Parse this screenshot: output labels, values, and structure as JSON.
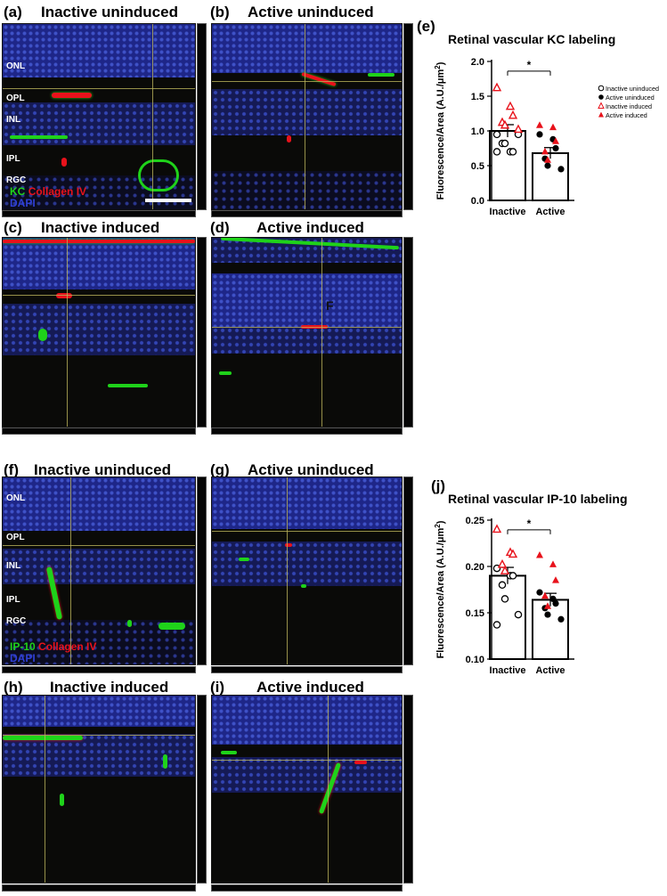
{
  "panels": {
    "a": {
      "label": "(a)",
      "title": "Inactive uninduced"
    },
    "b": {
      "label": "(b)",
      "title": "Active uninduced"
    },
    "c": {
      "label": "(c)",
      "title": "Inactive induced"
    },
    "d": {
      "label": "(d)",
      "title": "Active induced"
    },
    "e": {
      "label": "(e)"
    },
    "f": {
      "label": "(f)",
      "title": "Inactive uninduced"
    },
    "g": {
      "label": "(g)",
      "title": "Active uninduced"
    },
    "h": {
      "label": "(h)",
      "title": "Inactive induced"
    },
    "i": {
      "label": "(i)",
      "title": "Active induced"
    },
    "j": {
      "label": "(j)"
    }
  },
  "layers_top": [
    "ONL",
    "OPL",
    "INL",
    "IPL",
    "RGC"
  ],
  "layers_bottom": [
    "ONL",
    "OPL",
    "INL",
    "IPL",
    "RGC"
  ],
  "stain_top": {
    "kc": "KC",
    "collagen": "Collagen IV",
    "dapi": "DAPI"
  },
  "stain_bottom": {
    "ip10": "IP-10",
    "collagen": "Collagen IV",
    "dapi": "DAPI"
  },
  "panel_d_mark": "F",
  "colors": {
    "red": "#e8121b",
    "green": "#1fd21a",
    "blue": "#2f3fd6",
    "dapi_blue": "#2a35a8"
  },
  "chart_data": [
    {
      "type": "scatter",
      "title": "Retinal vascular KC labeling",
      "ylabel": "Fluorescence/Area (A.U./μm²)",
      "ylabel_text": "Fluorescence/Area (A.U./μm",
      "ylabel_sup": "2",
      "ylabel_end": ")",
      "categories": [
        "Inactive",
        "Active"
      ],
      "ylim": [
        0.0,
        2.0
      ],
      "yticks": [
        "0.0",
        "0.5",
        "1.0",
        "1.5",
        "2.0"
      ],
      "bars": [
        1.0,
        0.68
      ],
      "sem": [
        0.09,
        0.08
      ],
      "significance": "*",
      "legend": [
        "Inactive uninduced",
        "Active uninduced",
        "Inactive induced",
        "Active induced"
      ],
      "series": [
        {
          "name": "Inactive uninduced",
          "group": 0,
          "values": [
            0.7,
            0.7,
            0.7,
            0.82,
            0.82,
            0.95,
            0.95
          ]
        },
        {
          "name": "Inactive induced",
          "group": 0,
          "values": [
            1.62,
            1.35,
            1.22,
            1.12,
            1.08,
            1.02
          ]
        },
        {
          "name": "Active uninduced",
          "group": 1,
          "values": [
            0.95,
            0.88,
            0.75,
            0.6,
            0.5,
            0.45
          ]
        },
        {
          "name": "Active induced",
          "group": 1,
          "values": [
            1.08,
            1.05,
            0.85,
            0.7,
            0.58
          ]
        }
      ]
    },
    {
      "type": "scatter",
      "title": "Retinal vascular IP-10 labeling",
      "ylabel": "Fluorescence/Area (A.U./μm²)",
      "ylabel_text": "Fluorescence/Area (A.U./μm",
      "ylabel_sup": "2",
      "ylabel_end": ")",
      "categories": [
        "Inactive",
        "Active"
      ],
      "ylim": [
        0.1,
        0.25
      ],
      "yticks": [
        "0.10",
        "0.15",
        "0.20",
        "0.25"
      ],
      "bars": [
        0.19,
        0.164
      ],
      "sem": [
        0.009,
        0.007
      ],
      "significance": "*",
      "series": [
        {
          "name": "Inactive uninduced",
          "group": 0,
          "values": [
            0.198,
            0.19,
            0.19,
            0.18,
            0.165,
            0.148,
            0.137
          ]
        },
        {
          "name": "Inactive induced",
          "group": 0,
          "values": [
            0.24,
            0.215,
            0.213,
            0.202,
            0.195
          ]
        },
        {
          "name": "Active uninduced",
          "group": 1,
          "values": [
            0.172,
            0.165,
            0.16,
            0.155,
            0.148,
            0.143
          ]
        },
        {
          "name": "Active induced",
          "group": 1,
          "values": [
            0.212,
            0.202,
            0.185,
            0.168,
            0.157
          ]
        }
      ]
    }
  ]
}
